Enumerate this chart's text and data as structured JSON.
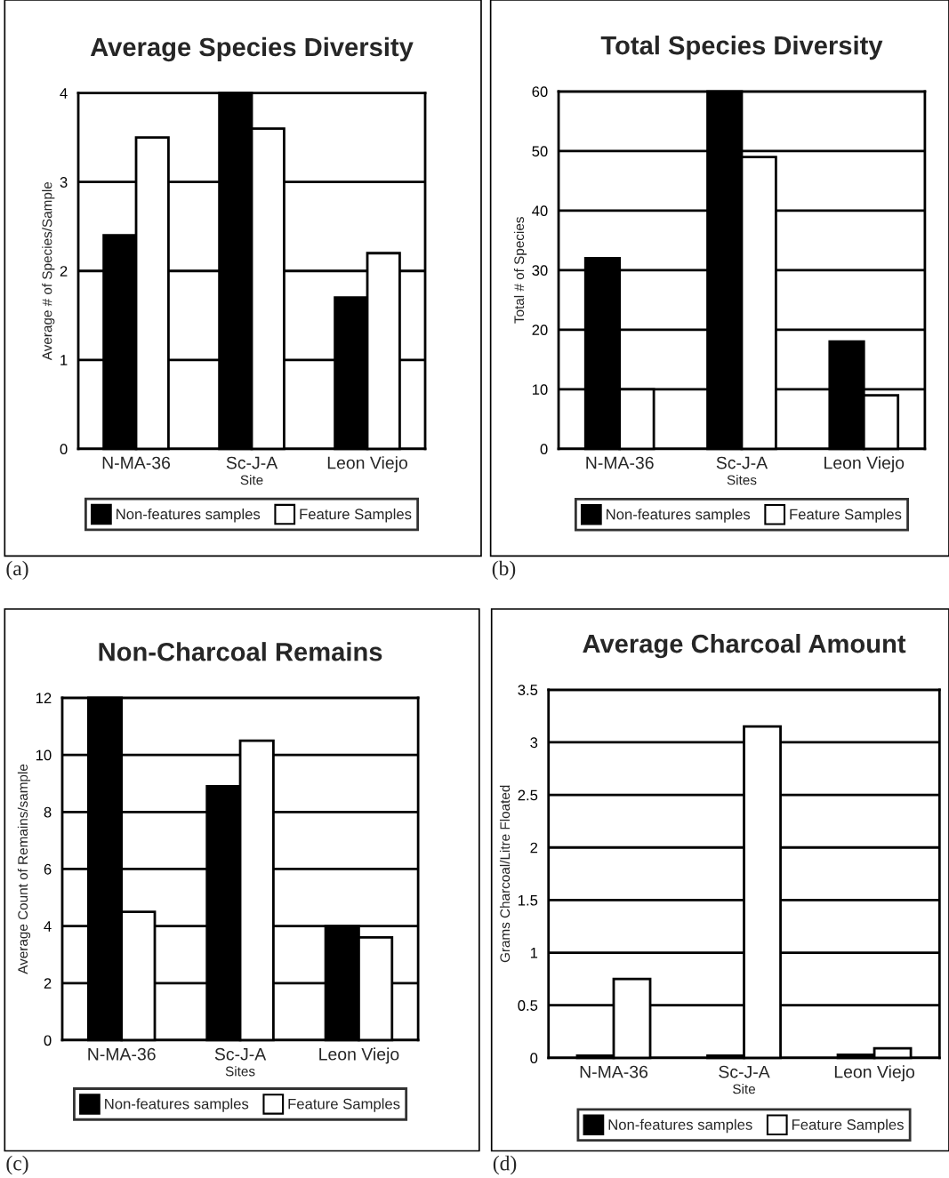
{
  "chart_data": [
    {
      "type": "bar",
      "title": "Average Species Diversity",
      "xlabel": "Site",
      "ylabel": "Average # of Species/Sample",
      "categories": [
        "N-MA-36",
        "Sc-J-A",
        "Leon Viejo"
      ],
      "series": [
        {
          "name": "Non-features samples",
          "color": "#000000",
          "values": [
            2.4,
            4.0,
            1.7
          ]
        },
        {
          "name": "Feature Samples",
          "color": "#ffffff",
          "values": [
            3.5,
            3.6,
            2.2
          ]
        }
      ],
      "ylim": [
        0,
        4
      ],
      "yticks": [
        0,
        1,
        2,
        3,
        4
      ],
      "grid": "y",
      "legend": "bottom",
      "annotations": [
        "(a)"
      ]
    },
    {
      "type": "bar",
      "title": "Total Species Diversity",
      "xlabel": "Sites",
      "ylabel": "Total # of Species",
      "categories": [
        "N-MA-36",
        "Sc-J-A",
        "Leon Viejo"
      ],
      "series": [
        {
          "name": "Non-features samples",
          "color": "#000000",
          "values": [
            32,
            60,
            18
          ]
        },
        {
          "name": "Feature Samples",
          "color": "#ffffff",
          "values": [
            10,
            49,
            9
          ]
        }
      ],
      "ylim": [
        0,
        60
      ],
      "yticks": [
        0,
        10,
        20,
        30,
        40,
        50,
        60
      ],
      "grid": "y",
      "legend": "bottom",
      "annotations": [
        "(b)"
      ]
    },
    {
      "type": "bar",
      "title": "Non-Charcoal Remains",
      "xlabel": "Sites",
      "ylabel": "Average Count of Remains/sample",
      "categories": [
        "N-MA-36",
        "Sc-J-A",
        "Leon Viejo"
      ],
      "series": [
        {
          "name": "Non-features samples",
          "color": "#000000",
          "values": [
            12,
            8.9,
            4.0
          ]
        },
        {
          "name": "Feature Samples",
          "color": "#ffffff",
          "values": [
            4.5,
            10.5,
            3.6
          ]
        }
      ],
      "ylim": [
        0,
        12
      ],
      "yticks": [
        0,
        2,
        4,
        6,
        8,
        10,
        12
      ],
      "grid": "y",
      "legend": "bottom",
      "annotations": [
        "(c)"
      ]
    },
    {
      "type": "bar",
      "title": "Average Charcoal Amount",
      "xlabel": "Site",
      "ylabel": "Grams Charcoal/Litre Floated",
      "categories": [
        "N-MA-36",
        "Sc-J-A",
        "Leon Viejo"
      ],
      "series": [
        {
          "name": "Non-features samples",
          "color": "#000000",
          "values": [
            0.02,
            0.02,
            0.03
          ]
        },
        {
          "name": "Feature Samples",
          "color": "#ffffff",
          "values": [
            0.75,
            3.15,
            0.09
          ]
        }
      ],
      "ylim": [
        0,
        3.5
      ],
      "yticks": [
        0,
        0.5,
        1,
        1.5,
        2,
        2.5,
        3,
        3.5
      ],
      "grid": "y",
      "legend": "bottom",
      "annotations": [
        "(d)"
      ]
    }
  ]
}
